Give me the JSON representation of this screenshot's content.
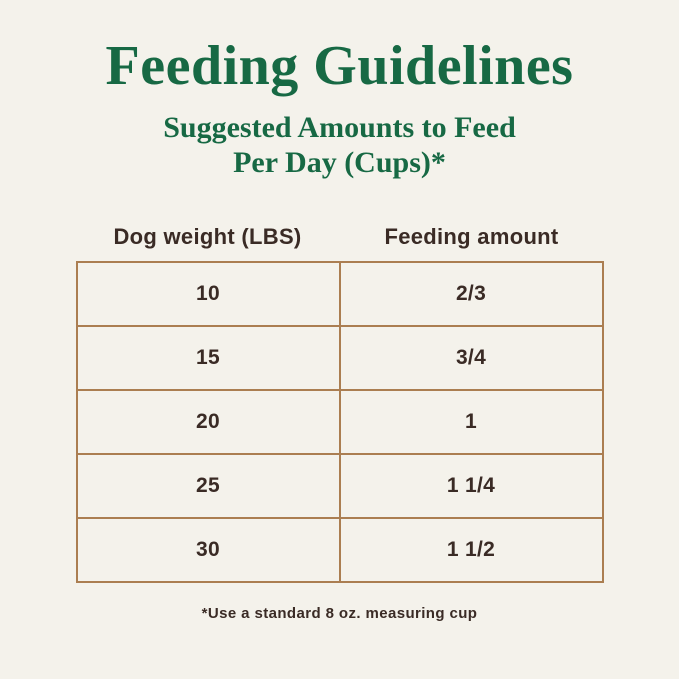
{
  "title": "Feeding Guidelines",
  "subtitle": {
    "line1": "Suggested Amounts to Feed",
    "line2": "Per Day (Cups)*"
  },
  "table": {
    "columns": [
      "Dog weight (LBS)",
      "Feeding amount"
    ],
    "rows": [
      [
        "10",
        "2/3"
      ],
      [
        "15",
        "3/4"
      ],
      [
        "20",
        "1"
      ],
      [
        "25",
        "1 1/4"
      ],
      [
        "30",
        "1 1/2"
      ]
    ]
  },
  "footnote": "*Use a standard 8 oz. measuring cup",
  "colors": {
    "accent_green": "#176944",
    "table_border": "#ab7e51",
    "text_dark": "#3a2b25",
    "background": "#f4f2eb"
  },
  "chart_data": {
    "type": "table",
    "title": "Feeding Guidelines",
    "subtitle": "Suggested Amounts to Feed Per Day (Cups)*",
    "columns": [
      "Dog weight (LBS)",
      "Feeding amount"
    ],
    "rows": [
      [
        "10",
        "2/3"
      ],
      [
        "15",
        "3/4"
      ],
      [
        "20",
        "1"
      ],
      [
        "25",
        "1 1/4"
      ],
      [
        "30",
        "1 1/2"
      ]
    ],
    "footnote": "*Use a standard 8 oz. measuring cup",
    "units": "cups per day",
    "legend_position": "none",
    "grid": "table-borders"
  }
}
